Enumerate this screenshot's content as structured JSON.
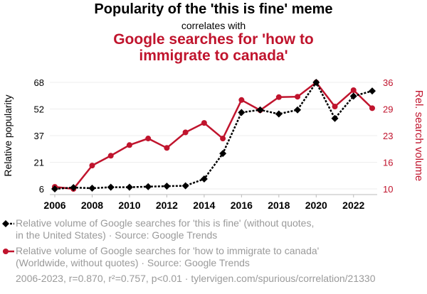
{
  "chart_data": {
    "type": "line",
    "title": "Popularity of the 'this is fine' meme",
    "subtitle": "correlates with",
    "title2": "Google searches for 'how to immigrate to canada'",
    "x": [
      2006,
      2007,
      2008,
      2009,
      2010,
      2011,
      2012,
      2013,
      2014,
      2015,
      2016,
      2017,
      2018,
      2019,
      2020,
      2021,
      2022,
      2023
    ],
    "xticks": [
      "2006",
      "2008",
      "2010",
      "2012",
      "2014",
      "2016",
      "2018",
      "2020",
      "2022"
    ],
    "ylabel_left": "Relative popularity",
    "ylabel_right": "Rel. search volume",
    "yticks_left": [
      "6",
      "21",
      "37",
      "52",
      "68"
    ],
    "yticks_right": [
      "10",
      "16",
      "23",
      "29",
      "36"
    ],
    "ylim_left": [
      6,
      68
    ],
    "ylim_right": [
      10,
      36
    ],
    "series": [
      {
        "name": "Relative volume of Google searches for 'this is fine' (without quotes, in the United States) · Source: Google Trends",
        "axis": "left",
        "color": "#000000",
        "style": "dotted",
        "marker": "diamond",
        "values": [
          6,
          6.8,
          6.4,
          7,
          7,
          7.3,
          7.6,
          7.8,
          11.8,
          26.6,
          50.5,
          52,
          49.6,
          52,
          68,
          47,
          60,
          63
        ]
      },
      {
        "name": "Relative volume of Google searches for 'how to immigrate to canada' (Worldwide, without quotes) · Source: Google Trends",
        "axis": "right",
        "color": "#c0142d",
        "style": "solid",
        "marker": "circle",
        "values": [
          10.5,
          10,
          15.7,
          18.1,
          20.7,
          22.3,
          20,
          23.8,
          26.1,
          22.3,
          31.7,
          29.2,
          32.4,
          32.5,
          36,
          30.1,
          34.1,
          29.7
        ]
      }
    ],
    "legend": {
      "s1_line1": "Relative volume of Google searches for 'this is fine' (without quotes,",
      "s1_line2": "in the United States) · Source: Google Trends",
      "s2_line1": "Relative volume of Google searches for 'how to immigrate to canada'",
      "s2_line2": "(Worldwide, without quotes) · Source: Google Trends"
    },
    "footer": "2006-2023, r=0.870, r²=0.757, p<0.01 · tylervigen.com/spurious/correlation/21330"
  }
}
